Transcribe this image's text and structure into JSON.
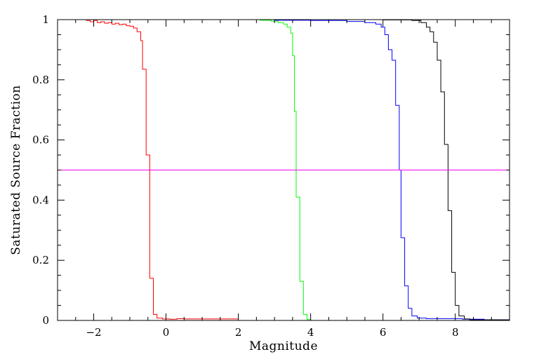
{
  "chart_data": {
    "type": "line",
    "step": true,
    "xlabel": "Magnitude",
    "ylabel": "Saturated Source Fraction",
    "xlim": [
      -3,
      9.5
    ],
    "ylim": [
      0,
      1
    ],
    "x_ticks": [
      -2,
      0,
      2,
      4,
      6,
      8
    ],
    "x_tick_labels": [
      "−2",
      "0",
      "2",
      "4",
      "6",
      "8"
    ],
    "y_ticks": [
      0,
      0.2,
      0.4,
      0.6,
      0.8,
      1
    ],
    "y_tick_labels": [
      "0",
      "0.2",
      "0.4",
      "0.6",
      "0.8",
      "1"
    ],
    "grid": false,
    "reference_line": {
      "y": 0.5,
      "color": "#ff00ff"
    },
    "series": [
      {
        "color": "#ff0000",
        "points": [
          [
            -3,
            1
          ],
          [
            -2.5,
            1
          ],
          [
            -2.2,
            0.997
          ],
          [
            -2.1,
            0.993
          ],
          [
            -2.0,
            0.997
          ],
          [
            -1.9,
            0.99
          ],
          [
            -1.8,
            0.993
          ],
          [
            -1.7,
            0.988
          ],
          [
            -1.6,
            0.99
          ],
          [
            -1.5,
            0.985
          ],
          [
            -1.4,
            0.988
          ],
          [
            -1.3,
            0.983
          ],
          [
            -1.2,
            0.985
          ],
          [
            -1.1,
            0.98
          ],
          [
            -1.0,
            0.978
          ],
          [
            -0.9,
            0.972
          ],
          [
            -0.8,
            0.96
          ],
          [
            -0.7,
            0.93
          ],
          [
            -0.65,
            0.835
          ],
          [
            -0.55,
            0.55
          ],
          [
            -0.45,
            0.14
          ],
          [
            -0.35,
            0.02
          ],
          [
            -0.25,
            0.008
          ],
          [
            -0.1,
            0.005
          ],
          [
            0.1,
            0.004
          ],
          [
            0.3,
            0.006
          ],
          [
            0.5,
            0.005
          ],
          [
            2.0,
            0.005
          ]
        ]
      },
      {
        "color": "#00ff00",
        "points": [
          [
            -3,
            1
          ],
          [
            2.6,
            0.998
          ],
          [
            2.9,
            0.995
          ],
          [
            3.1,
            0.99
          ],
          [
            3.25,
            0.985
          ],
          [
            3.35,
            0.975
          ],
          [
            3.45,
            0.955
          ],
          [
            3.5,
            0.88
          ],
          [
            3.55,
            0.695
          ],
          [
            3.6,
            0.41
          ],
          [
            3.7,
            0.13
          ],
          [
            3.8,
            0.02
          ],
          [
            3.9,
            0.003
          ],
          [
            4.0,
            0
          ],
          [
            6.1,
            0
          ]
        ]
      },
      {
        "color": "#0000ff",
        "points": [
          [
            2.3,
            1
          ],
          [
            3.0,
            0.998
          ],
          [
            4.0,
            0.997
          ],
          [
            5.0,
            0.994
          ],
          [
            5.5,
            0.99
          ],
          [
            5.8,
            0.985
          ],
          [
            5.95,
            0.975
          ],
          [
            6.05,
            0.95
          ],
          [
            6.15,
            0.9
          ],
          [
            6.25,
            0.865
          ],
          [
            6.35,
            0.715
          ],
          [
            6.45,
            0.5
          ],
          [
            6.5,
            0.275
          ],
          [
            6.6,
            0.115
          ],
          [
            6.7,
            0.04
          ],
          [
            6.8,
            0.015
          ],
          [
            6.95,
            0.008
          ],
          [
            7.2,
            0.006
          ],
          [
            7.6,
            0.006
          ],
          [
            8.2,
            0.004
          ],
          [
            8.8,
            0.002
          ],
          [
            9.5,
            0.002
          ]
        ]
      },
      {
        "color": "#000000",
        "points": [
          [
            2.5,
            1
          ],
          [
            6.0,
            0.999
          ],
          [
            6.8,
            0.997
          ],
          [
            7.05,
            0.99
          ],
          [
            7.2,
            0.975
          ],
          [
            7.3,
            0.96
          ],
          [
            7.4,
            0.925
          ],
          [
            7.5,
            0.865
          ],
          [
            7.6,
            0.76
          ],
          [
            7.7,
            0.585
          ],
          [
            7.8,
            0.365
          ],
          [
            7.9,
            0.16
          ],
          [
            8.0,
            0.05
          ],
          [
            8.1,
            0.015
          ],
          [
            8.25,
            0.005
          ],
          [
            8.4,
            0.002
          ],
          [
            9.5,
            0
          ]
        ]
      }
    ]
  }
}
